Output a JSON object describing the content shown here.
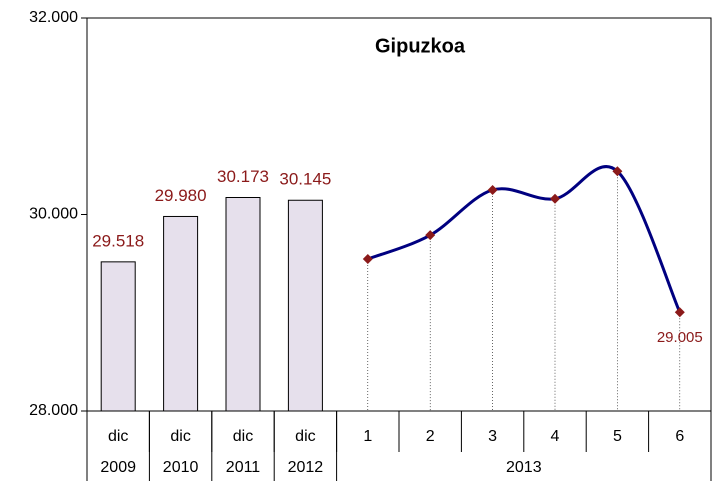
{
  "chart_data": {
    "type": "combo",
    "title": "Gipuzkoa",
    "categories": [
      "dic",
      "dic",
      "dic",
      "dic",
      "1",
      "2",
      "3",
      "4",
      "5",
      "6"
    ],
    "category_groups": [
      {
        "label": "2009",
        "count": 1
      },
      {
        "label": "2010",
        "count": 1
      },
      {
        "label": "2011",
        "count": 1
      },
      {
        "label": "2012",
        "count": 1
      },
      {
        "label": "2013",
        "count": 6
      }
    ],
    "series": [
      {
        "type": "bar",
        "color": "#e6e0ec",
        "values": [
          29518,
          29980,
          30173,
          30145,
          null,
          null,
          null,
          null,
          null,
          null
        ],
        "value_labels": [
          "29.518",
          "29.980",
          "30.173",
          "30.145",
          null,
          null,
          null,
          null,
          null,
          null
        ]
      },
      {
        "type": "line",
        "color": "#000080",
        "marker_color": "#8b1a1a",
        "values": [
          null,
          null,
          null,
          null,
          29547,
          29790,
          30250,
          30160,
          30440,
          29005
        ],
        "value_labels": [
          null,
          null,
          null,
          null,
          null,
          null,
          null,
          null,
          null,
          "29.005"
        ]
      }
    ],
    "label_color": "#8b1a1a",
    "ylim": [
      28000,
      32000
    ],
    "yticks": [
      {
        "value": 28000,
        "label": "28.000"
      },
      {
        "value": 30000,
        "label": "30.000"
      },
      {
        "value": 32000,
        "label": "32.000"
      }
    ]
  }
}
